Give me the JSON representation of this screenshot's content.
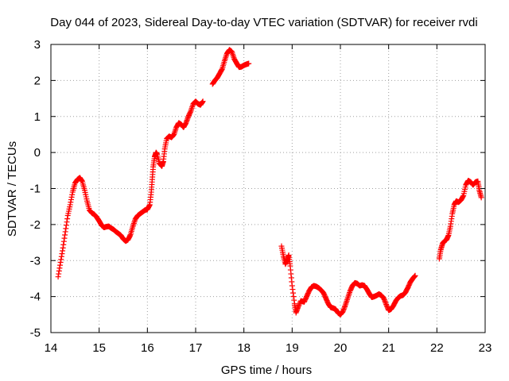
{
  "chart_data": {
    "type": "scatter",
    "title": "Day 044 of 2023, Sidereal Day-to-day VTEC variation (SDTVAR) for receiver rvdi",
    "xlabel": "GPS time / hours",
    "ylabel": "SDTVAR / TECUs",
    "xlim": [
      14,
      23
    ],
    "ylim": [
      -5,
      3
    ],
    "xticks": [
      14,
      15,
      16,
      17,
      18,
      19,
      20,
      21,
      22,
      23
    ],
    "yticks": [
      -5,
      -4,
      -3,
      -2,
      -1,
      0,
      1,
      2,
      3
    ],
    "xtick_labels": [
      "14",
      "15",
      "16",
      "17",
      "18",
      "19",
      "20",
      "21",
      "22",
      "23"
    ],
    "ytick_labels": [
      "-5",
      "-4",
      "-3",
      "-2",
      "-1",
      "0",
      "1",
      "2",
      "3"
    ],
    "grid": true,
    "marker": "plus",
    "color": "#ff0000",
    "series": [
      {
        "name": "SDTVAR",
        "segments": [
          [
            [
              14.15,
              -3.45
            ],
            [
              14.2,
              -3.05
            ],
            [
              14.25,
              -2.65
            ],
            [
              14.3,
              -2.2
            ],
            [
              14.35,
              -1.75
            ],
            [
              14.4,
              -1.45
            ],
            [
              14.45,
              -1.1
            ],
            [
              14.5,
              -0.85
            ],
            [
              14.55,
              -0.75
            ],
            [
              14.6,
              -0.7
            ],
            [
              14.65,
              -0.8
            ],
            [
              14.7,
              -1.05
            ],
            [
              14.75,
              -1.35
            ],
            [
              14.8,
              -1.6
            ],
            [
              14.85,
              -1.68
            ],
            [
              14.9,
              -1.72
            ],
            [
              14.95,
              -1.8
            ],
            [
              15.0,
              -1.9
            ],
            [
              15.05,
              -2.02
            ],
            [
              15.1,
              -2.08
            ],
            [
              15.15,
              -2.06
            ],
            [
              15.2,
              -2.05
            ],
            [
              15.25,
              -2.1
            ],
            [
              15.3,
              -2.14
            ],
            [
              15.35,
              -2.2
            ],
            [
              15.4,
              -2.25
            ],
            [
              15.45,
              -2.3
            ],
            [
              15.5,
              -2.4
            ],
            [
              15.55,
              -2.46
            ],
            [
              15.6,
              -2.42
            ],
            [
              15.65,
              -2.28
            ],
            [
              15.7,
              -2.05
            ],
            [
              15.75,
              -1.85
            ],
            [
              15.8,
              -1.75
            ],
            [
              15.85,
              -1.7
            ],
            [
              15.9,
              -1.65
            ],
            [
              15.95,
              -1.6
            ],
            [
              16.0,
              -1.58
            ],
            [
              16.05,
              -1.45
            ],
            [
              16.08,
              -1.1
            ],
            [
              16.1,
              -0.75
            ],
            [
              16.12,
              -0.4
            ],
            [
              16.15,
              -0.12
            ],
            [
              16.18,
              0.0
            ],
            [
              16.2,
              -0.05
            ],
            [
              16.25,
              -0.3
            ],
            [
              16.3,
              -0.38
            ],
            [
              16.33,
              -0.25
            ],
            [
              16.36,
              0.1
            ],
            [
              16.4,
              0.38
            ],
            [
              16.45,
              0.45
            ],
            [
              16.5,
              0.42
            ],
            [
              16.55,
              0.5
            ],
            [
              16.6,
              0.7
            ],
            [
              16.65,
              0.82
            ],
            [
              16.7,
              0.78
            ],
            [
              16.75,
              0.7
            ],
            [
              16.8,
              0.82
            ],
            [
              16.85,
              1.0
            ],
            [
              16.9,
              1.15
            ],
            [
              16.95,
              1.35
            ],
            [
              17.0,
              1.42
            ],
            [
              17.05,
              1.35
            ],
            [
              17.1,
              1.32
            ],
            [
              17.15,
              1.42
            ]
          ],
          [
            [
              17.35,
              1.9
            ],
            [
              17.4,
              2.0
            ],
            [
              17.45,
              2.08
            ],
            [
              17.5,
              2.2
            ],
            [
              17.55,
              2.32
            ],
            [
              17.6,
              2.55
            ],
            [
              17.65,
              2.75
            ],
            [
              17.7,
              2.85
            ],
            [
              17.75,
              2.8
            ],
            [
              17.8,
              2.6
            ],
            [
              17.85,
              2.48
            ],
            [
              17.9,
              2.37
            ],
            [
              17.95,
              2.38
            ],
            [
              18.0,
              2.42
            ],
            [
              18.05,
              2.45
            ],
            [
              18.1,
              2.47
            ]
          ],
          [
            [
              18.78,
              -2.6
            ],
            [
              18.82,
              -2.88
            ],
            [
              18.86,
              -3.1
            ],
            [
              18.9,
              -2.98
            ],
            [
              18.93,
              -2.85
            ],
            [
              18.96,
              -3.15
            ],
            [
              19.0,
              -3.7
            ],
            [
              19.05,
              -4.2
            ],
            [
              19.08,
              -4.45
            ],
            [
              19.12,
              -4.3
            ],
            [
              19.18,
              -4.12
            ],
            [
              19.25,
              -4.15
            ],
            [
              19.3,
              -4.0
            ],
            [
              19.35,
              -3.85
            ],
            [
              19.4,
              -3.74
            ],
            [
              19.45,
              -3.7
            ],
            [
              19.5,
              -3.72
            ],
            [
              19.55,
              -3.76
            ],
            [
              19.6,
              -3.82
            ],
            [
              19.65,
              -3.9
            ],
            [
              19.7,
              -4.05
            ],
            [
              19.75,
              -4.2
            ],
            [
              19.8,
              -4.3
            ],
            [
              19.85,
              -4.32
            ],
            [
              19.9,
              -4.35
            ],
            [
              19.95,
              -4.45
            ],
            [
              20.0,
              -4.5
            ],
            [
              20.05,
              -4.42
            ],
            [
              20.1,
              -4.25
            ],
            [
              20.15,
              -4.05
            ],
            [
              20.2,
              -3.85
            ],
            [
              20.25,
              -3.7
            ],
            [
              20.3,
              -3.62
            ],
            [
              20.35,
              -3.64
            ],
            [
              20.4,
              -3.7
            ],
            [
              20.45,
              -3.68
            ],
            [
              20.5,
              -3.7
            ],
            [
              20.55,
              -3.8
            ],
            [
              20.6,
              -3.92
            ],
            [
              20.65,
              -4.02
            ],
            [
              20.7,
              -4.0
            ],
            [
              20.75,
              -3.97
            ],
            [
              20.8,
              -3.93
            ],
            [
              20.85,
              -3.97
            ],
            [
              20.9,
              -4.05
            ],
            [
              20.95,
              -4.22
            ],
            [
              21.0,
              -4.38
            ],
            [
              21.05,
              -4.35
            ],
            [
              21.1,
              -4.25
            ],
            [
              21.15,
              -4.12
            ],
            [
              21.2,
              -4.03
            ],
            [
              21.25,
              -3.98
            ],
            [
              21.3,
              -3.96
            ],
            [
              21.35,
              -3.88
            ],
            [
              21.4,
              -3.75
            ],
            [
              21.45,
              -3.6
            ],
            [
              21.5,
              -3.5
            ],
            [
              21.55,
              -3.42
            ]
          ],
          [
            [
              22.05,
              -2.95
            ],
            [
              22.08,
              -2.7
            ],
            [
              22.12,
              -2.52
            ],
            [
              22.16,
              -2.46
            ],
            [
              22.2,
              -2.42
            ],
            [
              22.24,
              -2.3
            ],
            [
              22.28,
              -2.05
            ],
            [
              22.32,
              -1.7
            ],
            [
              22.36,
              -1.45
            ],
            [
              22.4,
              -1.35
            ],
            [
              22.45,
              -1.38
            ],
            [
              22.5,
              -1.32
            ],
            [
              22.55,
              -1.2
            ],
            [
              22.6,
              -0.9
            ],
            [
              22.65,
              -0.78
            ],
            [
              22.7,
              -0.82
            ],
            [
              22.75,
              -0.9
            ],
            [
              22.8,
              -0.82
            ],
            [
              22.85,
              -0.8
            ],
            [
              22.88,
              -1.05
            ],
            [
              22.92,
              -1.25
            ]
          ]
        ]
      }
    ]
  }
}
